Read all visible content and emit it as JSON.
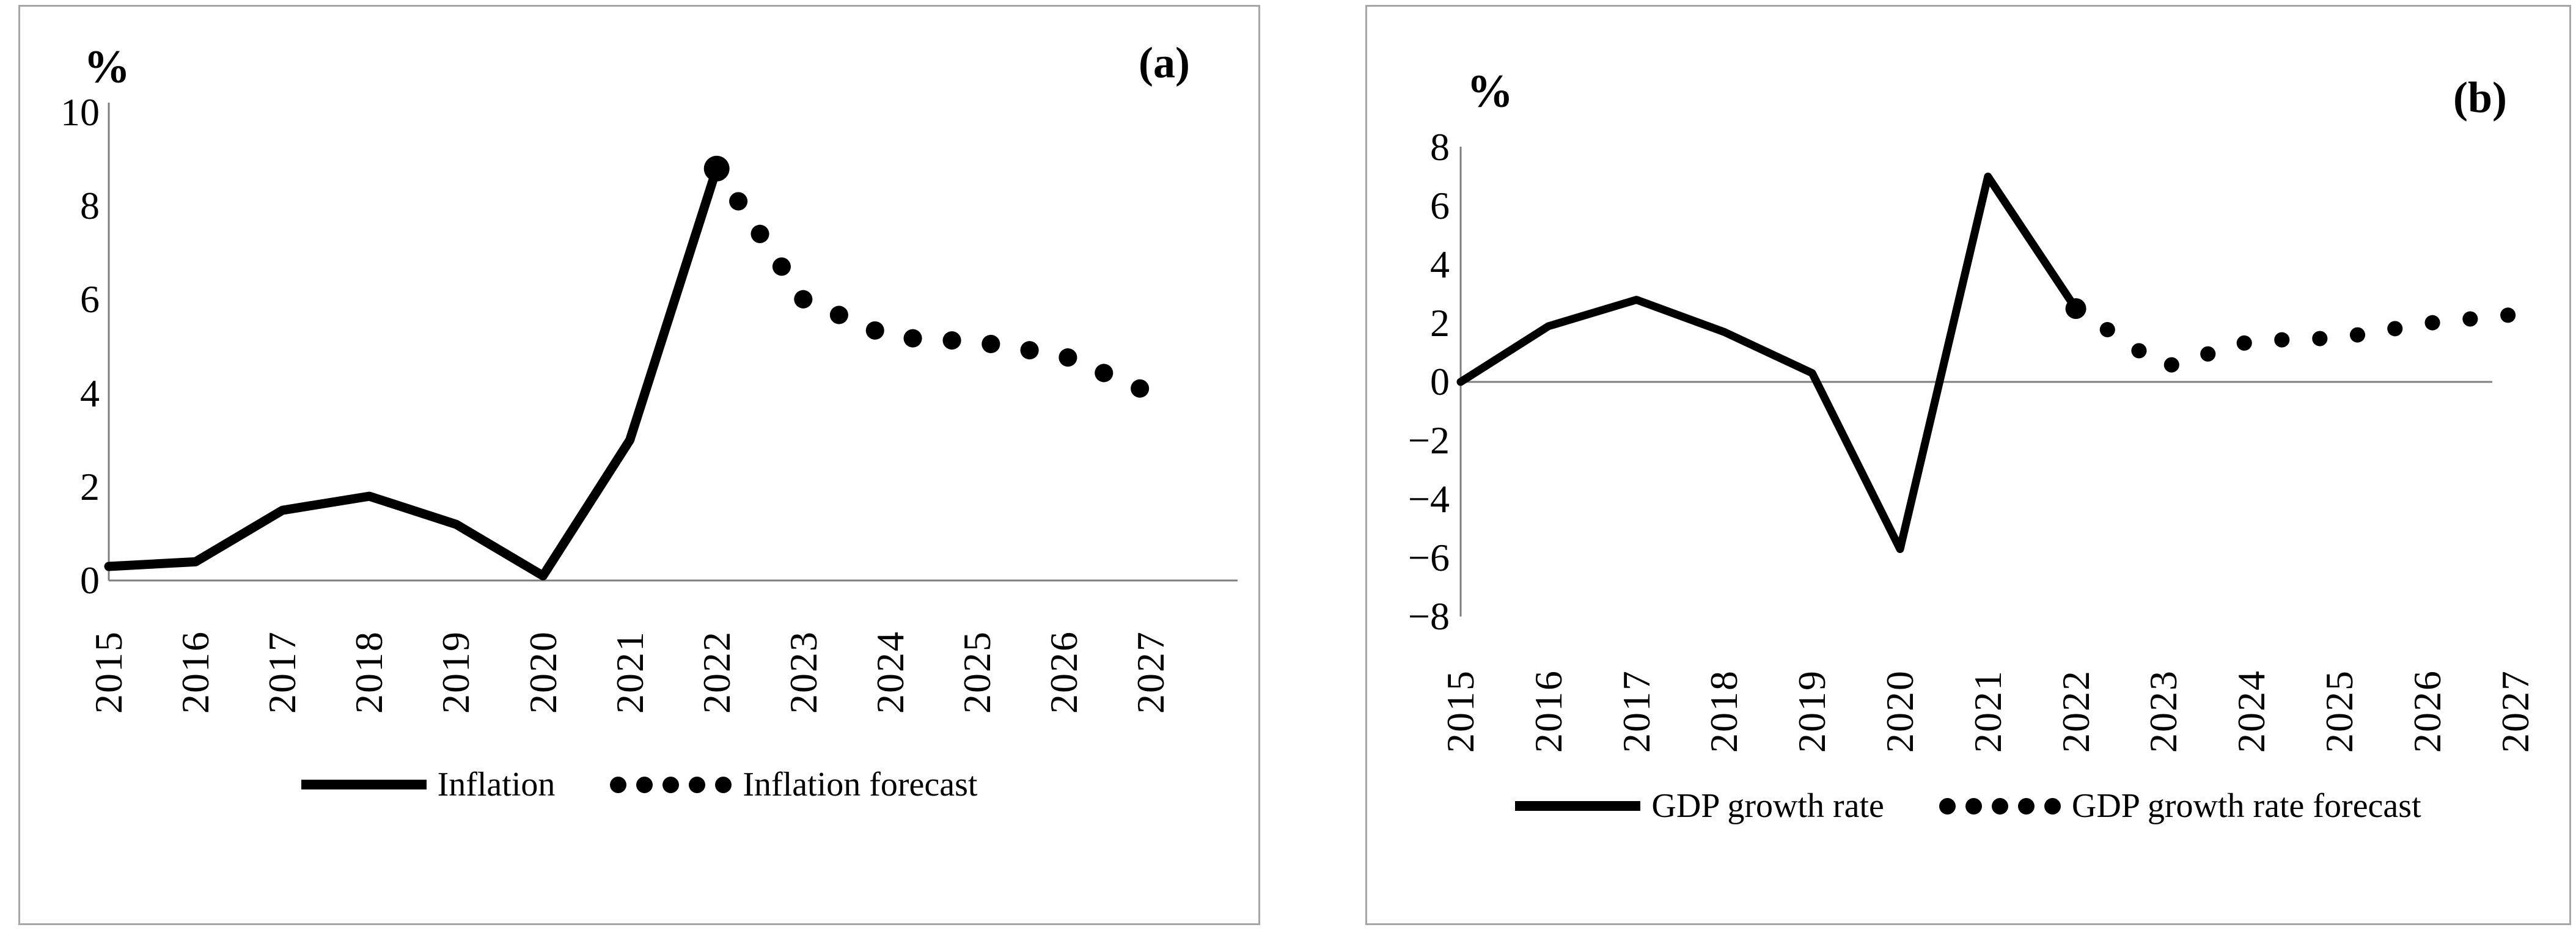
{
  "chart_data": [
    {
      "type": "line",
      "panel_label": "(a)",
      "ylabel": "%",
      "x": [
        2015,
        2016,
        2017,
        2018,
        2019,
        2020,
        2021,
        2022,
        2023,
        2024,
        2025,
        2026,
        2027
      ],
      "ylim": [
        0,
        10
      ],
      "y_ticks": [
        10,
        8,
        6,
        4,
        2,
        0
      ],
      "y_tick_labels": [
        "10",
        "8",
        "6",
        "4",
        "2",
        "0"
      ],
      "grid": "off",
      "legend_position": "bottom",
      "series": [
        {
          "name": "Inflation",
          "style": "solid",
          "years": [
            2015,
            2016,
            2017,
            2018,
            2019,
            2020,
            2021,
            2022
          ],
          "values": [
            0.3,
            0.4,
            1.5,
            1.8,
            1.2,
            0.1,
            3.0,
            8.8
          ]
        },
        {
          "name": "Inflation forecast",
          "style": "dotted",
          "start_marker": true,
          "years": [
            2022,
            2023,
            2024,
            2025,
            2026,
            2027
          ],
          "values": [
            8.8,
            6.0,
            5.2,
            5.1,
            4.8,
            4.0
          ]
        }
      ]
    },
    {
      "type": "line",
      "panel_label": "(b)",
      "ylabel": "%",
      "x": [
        2015,
        2016,
        2017,
        2018,
        2019,
        2020,
        2021,
        2022,
        2023,
        2024,
        2025,
        2026,
        2027
      ],
      "ylim": [
        -8,
        8
      ],
      "y_ticks": [
        8,
        6,
        4,
        2,
        0,
        -2,
        -4,
        -6,
        -8
      ],
      "y_tick_labels": [
        "8",
        "6",
        "4",
        "2",
        "0",
        "−2",
        "−4",
        "−6",
        "−8"
      ],
      "grid": "off",
      "legend_position": "bottom",
      "series": [
        {
          "name": "GDP growth rate",
          "style": "solid",
          "years": [
            2015,
            2016,
            2017,
            2018,
            2019,
            2020,
            2021,
            2022
          ],
          "values": [
            0.0,
            1.9,
            2.8,
            1.7,
            0.3,
            -5.7,
            7.0,
            2.5
          ]
        },
        {
          "name": "GDP growth rate forecast",
          "style": "dotted",
          "start_marker": true,
          "years": [
            2022,
            2023,
            2024,
            2025,
            2026,
            2027
          ],
          "values": [
            2.5,
            0.5,
            1.4,
            1.5,
            2.0,
            2.3
          ]
        }
      ]
    }
  ]
}
